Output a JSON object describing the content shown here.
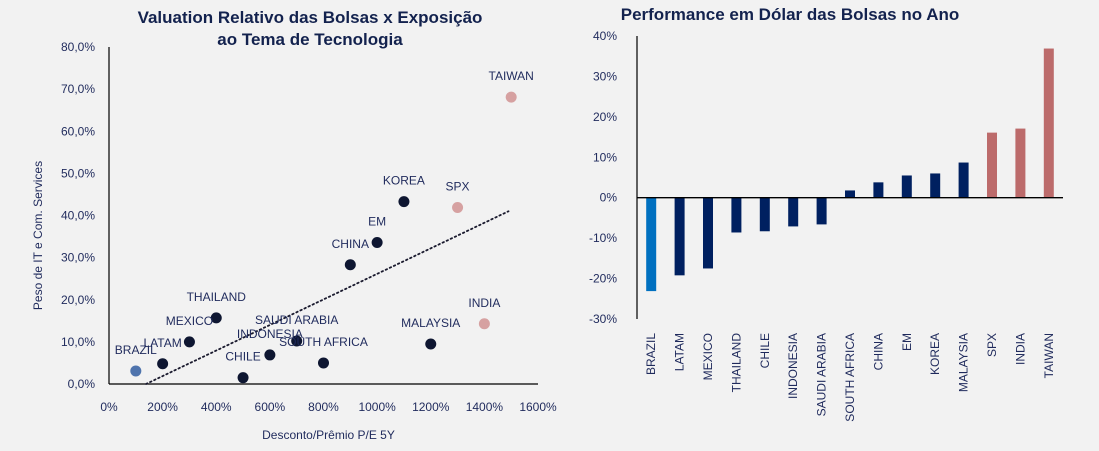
{
  "chart_data": [
    {
      "type": "scatter",
      "title": "Valuation Relativo das Bolsas x Exposição ao Tema de Tecnologia",
      "title_lines": [
        "Valuation Relativo das Bolsas x Exposição",
        "ao Tema de Tecnologia"
      ],
      "xlabel": "Desconto/Prêmio P/E 5Y",
      "ylabel": "Peso de IT e Com. Services",
      "xlim": [
        0,
        1600
      ],
      "ylim": [
        0,
        80
      ],
      "x_ticks": [
        0,
        200,
        400,
        600,
        800,
        1000,
        1200,
        1400,
        1600
      ],
      "x_tick_labels": [
        "0%",
        "200%",
        "400%",
        "600%",
        "800%",
        "1000%",
        "1200%",
        "1400%",
        "1600%"
      ],
      "y_ticks": [
        0,
        10,
        20,
        30,
        40,
        50,
        60,
        70,
        80
      ],
      "y_tick_labels": [
        "0,0%",
        "10,0%",
        "20,0%",
        "30,0%",
        "40,0%",
        "50,0%",
        "60,0%",
        "70,0%",
        "80,0%"
      ],
      "grid": false,
      "colors": {
        "brazil": "#4f74ad",
        "default": "#0e1631",
        "highlight": "#d6a1a1",
        "trendline": "#1a1a2e",
        "axis": "#000000"
      },
      "points": [
        {
          "label": "BRAZIL",
          "x": 100,
          "y": 3.1,
          "group": "brazil"
        },
        {
          "label": "LATAM",
          "x": 200,
          "y": 4.8,
          "group": "default"
        },
        {
          "label": "MEXICO",
          "x": 300,
          "y": 10.0,
          "group": "default"
        },
        {
          "label": "THAILAND",
          "x": 400,
          "y": 15.7,
          "group": "default"
        },
        {
          "label": "CHILE",
          "x": 500,
          "y": 1.5,
          "group": "default"
        },
        {
          "label": "INDONESIA",
          "x": 600,
          "y": 6.9,
          "group": "default"
        },
        {
          "label": "SAUDI ARABIA",
          "x": 700,
          "y": 10.2,
          "group": "default"
        },
        {
          "label": "SOUTH AFRICA",
          "x": 800,
          "y": 5.0,
          "group": "default"
        },
        {
          "label": "CHINA",
          "x": 900,
          "y": 28.3,
          "group": "default"
        },
        {
          "label": "EM",
          "x": 1000,
          "y": 33.6,
          "group": "default"
        },
        {
          "label": "KOREA",
          "x": 1100,
          "y": 43.3,
          "group": "default"
        },
        {
          "label": "MALAYSIA",
          "x": 1200,
          "y": 9.5,
          "group": "default"
        },
        {
          "label": "SPX",
          "x": 1300,
          "y": 41.9,
          "group": "highlight"
        },
        {
          "label": "INDIA",
          "x": 1400,
          "y": 14.3,
          "group": "highlight"
        },
        {
          "label": "TAIWAN",
          "x": 1500,
          "y": 68.1,
          "group": "highlight"
        }
      ],
      "trendline": {
        "type": "linear",
        "style": "dotted",
        "x": [
          138,
          1490
        ],
        "y": [
          0,
          41
        ]
      }
    },
    {
      "type": "bar",
      "title": "Performance em Dólar das Bolsas no Ano",
      "categories": [
        "BRAZIL",
        "LATAM",
        "MEXICO",
        "THAILAND",
        "CHILE",
        "INDONESIA",
        "SAUDI ARABIA",
        "SOUTH AFRICA",
        "CHINA",
        "EM",
        "KOREA",
        "MALAYSIA",
        "SPX",
        "INDIA",
        "TAIWAN"
      ],
      "values": [
        -23.1,
        -19.2,
        -17.5,
        -8.6,
        -8.3,
        -7.1,
        -6.6,
        1.8,
        3.8,
        5.5,
        6.0,
        8.7,
        16.1,
        17.1,
        36.9
      ],
      "groups": [
        "brazil",
        "default",
        "default",
        "default",
        "default",
        "default",
        "default",
        "default",
        "default",
        "default",
        "default",
        "default",
        "highlight",
        "highlight",
        "highlight"
      ],
      "colors": {
        "brazil": "#0070c0",
        "default": "#002060",
        "highlight": "#bc6b6b",
        "axis": "#000000"
      },
      "xlabel": "",
      "ylabel": "",
      "ylim": [
        -30,
        40
      ],
      "y_ticks": [
        -30,
        -20,
        -10,
        0,
        10,
        20,
        30,
        40
      ],
      "y_tick_labels": [
        "-30%",
        "-20%",
        "-10%",
        "0%",
        "10%",
        "20%",
        "30%",
        "40%"
      ],
      "grid": false,
      "units": "%"
    }
  ]
}
